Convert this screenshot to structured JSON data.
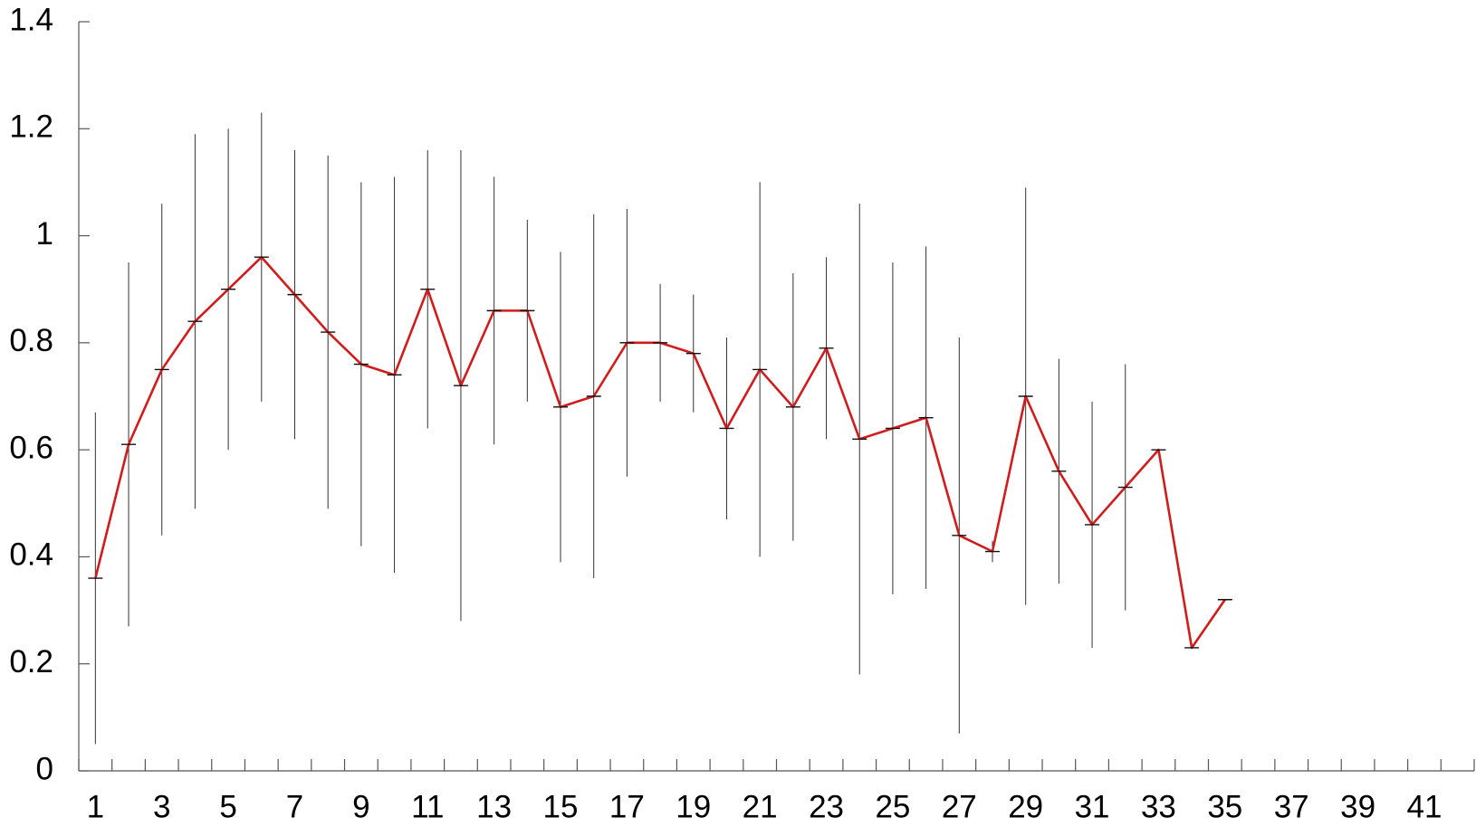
{
  "chart_data": {
    "type": "line",
    "categories": [
      "1",
      null,
      "3",
      null,
      "5",
      null,
      "7",
      null,
      "9",
      null,
      "11",
      null,
      "13",
      null,
      "15",
      null,
      "17",
      null,
      "19",
      null,
      "21",
      null,
      "23",
      null,
      "25",
      null,
      "27",
      null,
      "29",
      null,
      "31",
      null,
      "33",
      null,
      "35",
      null,
      "37",
      null,
      "39",
      null,
      "41",
      null
    ],
    "series": [
      {
        "color": "#d01c1c",
        "values": [
          0.36,
          0.61,
          0.75,
          0.84,
          0.9,
          0.96,
          0.89,
          0.82,
          0.76,
          0.74,
          0.9,
          0.72,
          0.86,
          0.86,
          0.68,
          0.7,
          0.8,
          0.8,
          0.78,
          0.64,
          0.75,
          0.68,
          0.79,
          0.62,
          0.64,
          0.66,
          0.44,
          0.41,
          0.7,
          0.56,
          0.46,
          0.53,
          0.6,
          0.23,
          0.32,
          null,
          null,
          null,
          null,
          null,
          null,
          null
        ],
        "errors": [
          0.31,
          0.34,
          0.31,
          0.35,
          0.3,
          0.27,
          0.27,
          0.33,
          0.34,
          0.37,
          0.26,
          0.44,
          0.25,
          0.17,
          0.29,
          0.34,
          0.25,
          0.11,
          0.11,
          0.17,
          0.35,
          0.25,
          0.17,
          0.44,
          0.31,
          0.32,
          0.37,
          0.02,
          0.39,
          0.21,
          0.23,
          0.23,
          0,
          0,
          0,
          null,
          null,
          null,
          null,
          null,
          null,
          null
        ]
      }
    ],
    "ylim": [
      0,
      1.4
    ],
    "yticks": [
      0,
      0.2,
      0.4,
      0.6,
      0.8,
      1,
      1.2,
      1.4
    ],
    "error_bar_color": "#333333"
  }
}
